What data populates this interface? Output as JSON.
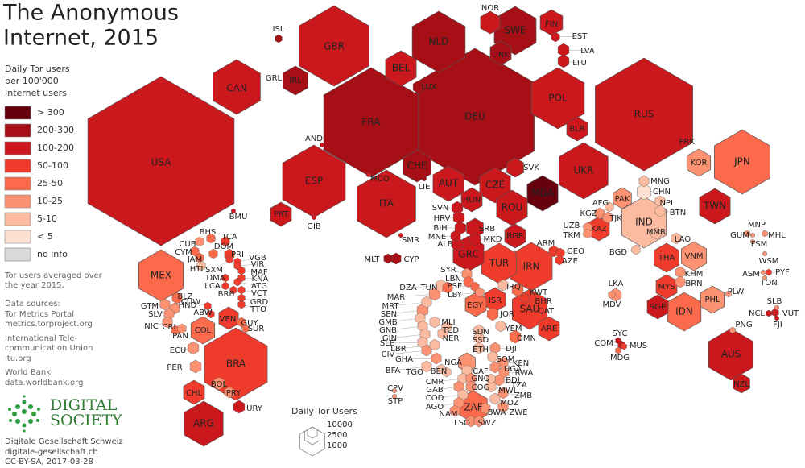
{
  "title": [
    "The Anonymous",
    "Internet, 2015"
  ],
  "legend": {
    "title": [
      "Daily Tor users",
      "per 100'000",
      "Internet users"
    ],
    "bins": [
      {
        "label": "> 300",
        "color": "#67000d"
      },
      {
        "label": "200-300",
        "color": "#a50f15"
      },
      {
        "label": "100-200",
        "color": "#cb181d"
      },
      {
        "label": "50-100",
        "color": "#ef3b2c"
      },
      {
        "label": "25-50",
        "color": "#fb6a4a"
      },
      {
        "label": "10-25",
        "color": "#fc9272"
      },
      {
        "label": "5-10",
        "color": "#fcbba1"
      },
      {
        "label": "< 5",
        "color": "#fee0d2"
      },
      {
        "label": "no info",
        "color": "#d9d9d9"
      }
    ]
  },
  "notes": [
    "Tor users averaged over",
    "the year 2015."
  ],
  "sources": [
    "Data sources:",
    "Tor Metrics Portal",
    "metrics.torproject.org",
    "International Tele-",
    "communication Union",
    "itu.org",
    "World Bank",
    "data.worldbank.org"
  ],
  "logo": [
    "DIGITAL",
    "SOCIETY"
  ],
  "credits": [
    "Digitale Gesellschaft Schweiz",
    "digitale-gesellschaft.ch",
    "CC-BY-SA, 2017-03-28"
  ],
  "size_legend": {
    "title": "Daily Tor Users",
    "values": [
      10000,
      2500,
      1000
    ]
  },
  "countries": [
    {
      "code": "USA",
      "color": "#cb181d"
    },
    {
      "code": "CAN",
      "color": "#cb181d"
    },
    {
      "code": "BMU",
      "color": "#cb181d"
    },
    {
      "code": "GRL",
      "color": "#d9d9d9"
    },
    {
      "code": "ISL",
      "color": "#a50f15"
    },
    {
      "code": "IRL",
      "color": "#a50f15"
    },
    {
      "code": "GBR",
      "color": "#cb181d"
    },
    {
      "code": "NLD",
      "color": "#a50f15"
    },
    {
      "code": "BEL",
      "color": "#cb181d"
    },
    {
      "code": "LUX",
      "color": "#a50f15"
    },
    {
      "code": "FRA",
      "color": "#a50f15"
    },
    {
      "code": "DEU",
      "color": "#a50f15"
    },
    {
      "code": "NOR",
      "color": "#cb181d"
    },
    {
      "code": "SWE",
      "color": "#a50f15"
    },
    {
      "code": "DNK",
      "color": "#a50f15"
    },
    {
      "code": "FIN",
      "color": "#cb181d"
    },
    {
      "code": "EST",
      "color": "#cb181d"
    },
    {
      "code": "LVA",
      "color": "#cb181d"
    },
    {
      "code": "LTU",
      "color": "#cb181d"
    },
    {
      "code": "POL",
      "color": "#cb181d"
    },
    {
      "code": "BLR",
      "color": "#cb181d"
    },
    {
      "code": "RUS",
      "color": "#cb181d"
    },
    {
      "code": "PRK",
      "color": "#d9d9d9"
    },
    {
      "code": "UKR",
      "color": "#cb181d"
    },
    {
      "code": "AND",
      "color": "#cb181d"
    },
    {
      "code": "ESP",
      "color": "#cb181d"
    },
    {
      "code": "PRT",
      "color": "#cb181d"
    },
    {
      "code": "GIB",
      "color": "#cb181d"
    },
    {
      "code": "MCO",
      "color": "#cb181d"
    },
    {
      "code": "CHE",
      "color": "#a50f15"
    },
    {
      "code": "LIE",
      "color": "#a50f15"
    },
    {
      "code": "ITA",
      "color": "#cb181d"
    },
    {
      "code": "AUT",
      "color": "#cb181d"
    },
    {
      "code": "CZE",
      "color": "#cb181d"
    },
    {
      "code": "SVK",
      "color": "#cb181d"
    },
    {
      "code": "MDA",
      "color": "#67000d"
    },
    {
      "code": "HUN",
      "color": "#cb181d"
    },
    {
      "code": "ROU",
      "color": "#cb181d"
    },
    {
      "code": "SVN",
      "color": "#cb181d"
    },
    {
      "code": "HRV",
      "color": "#cb181d"
    },
    {
      "code": "BIH",
      "color": "#cb181d"
    },
    {
      "code": "MNE",
      "color": "#cb181d"
    },
    {
      "code": "ALB",
      "color": "#cb181d"
    },
    {
      "code": "SRB",
      "color": "#cb181d"
    },
    {
      "code": "MKD",
      "color": "#cb181d"
    },
    {
      "code": "BGR",
      "color": "#cb181d"
    },
    {
      "code": "SMR",
      "color": "#cb181d"
    },
    {
      "code": "MLT",
      "color": "#a50f15"
    },
    {
      "code": "CYP",
      "color": "#a50f15"
    },
    {
      "code": "GRC",
      "color": "#cb181d"
    },
    {
      "code": "TUR",
      "color": "#ef3b2c"
    },
    {
      "code": "IRN",
      "color": "#ef3b2c"
    },
    {
      "code": "ARM",
      "color": "#ef3b2c"
    },
    {
      "code": "GEO",
      "color": "#ef3b2c"
    },
    {
      "code": "AZE",
      "color": "#ef3b2c"
    },
    {
      "code": "SYR",
      "color": "#fc9272"
    },
    {
      "code": "LBN",
      "color": "#fb6a4a"
    },
    {
      "code": "PSE",
      "color": "#fb6a4a"
    },
    {
      "code": "LBY",
      "color": "#fc9272"
    },
    {
      "code": "ISR",
      "color": "#ef3b2c"
    },
    {
      "code": "EGY",
      "color": "#fb6a4a"
    },
    {
      "code": "IRQ",
      "color": "#fcbba1"
    },
    {
      "code": "JOR",
      "color": "#fb6a4a"
    },
    {
      "code": "KWT",
      "color": "#fb6a4a"
    },
    {
      "code": "BHR",
      "color": "#ef3b2c"
    },
    {
      "code": "QAT",
      "color": "#ef3b2c"
    },
    {
      "code": "SAU",
      "color": "#ef3b2c"
    },
    {
      "code": "ARE",
      "color": "#ef3b2c"
    },
    {
      "code": "YEM",
      "color": "#fcbba1"
    },
    {
      "code": "OMN",
      "color": "#fb6a4a"
    },
    {
      "code": "MAR",
      "color": "#fc9272"
    },
    {
      "code": "DZA",
      "color": "#fcbba1"
    },
    {
      "code": "TUN",
      "color": "#fb6a4a"
    },
    {
      "code": "MRT",
      "color": "#fcbba1"
    },
    {
      "code": "SEN",
      "color": "#fc9272"
    },
    {
      "code": "GMB",
      "color": "#fcbba1"
    },
    {
      "code": "GNB",
      "color": "#fcbba1"
    },
    {
      "code": "MLI",
      "color": "#fcbba1"
    },
    {
      "code": "NER",
      "color": "#fcbba1"
    },
    {
      "code": "TCD",
      "color": "#fcbba1"
    },
    {
      "code": "GIN",
      "color": "#fcbba1"
    },
    {
      "code": "SLE",
      "color": "#fcbba1"
    },
    {
      "code": "CIV",
      "color": "#fc9272"
    },
    {
      "code": "LBR",
      "color": "#fcbba1"
    },
    {
      "code": "GHA",
      "color": "#fc9272"
    },
    {
      "code": "BFA",
      "color": "#fcbba1"
    },
    {
      "code": "TGO",
      "color": "#fcbba1"
    },
    {
      "code": "BEN",
      "color": "#fcbba1"
    },
    {
      "code": "NGA",
      "color": "#fc9272"
    },
    {
      "code": "CAF",
      "color": "#fcbba1"
    },
    {
      "code": "CMR",
      "color": "#fcbba1"
    },
    {
      "code": "GAB",
      "color": "#fc9272"
    },
    {
      "code": "GNQ",
      "color": "#fc9272"
    },
    {
      "code": "COG",
      "color": "#fc9272"
    },
    {
      "code": "COD",
      "color": "#fcbba1"
    },
    {
      "code": "AGO",
      "color": "#fc9272"
    },
    {
      "code": "CPV",
      "color": "#fc9272"
    },
    {
      "code": "STP",
      "color": "#fc9272"
    },
    {
      "code": "SDN",
      "color": "#fcbba1"
    },
    {
      "code": "SSD",
      "color": "#fcbba1"
    },
    {
      "code": "ETH",
      "color": "#fcbba1"
    },
    {
      "code": "DJI",
      "color": "#fc9272"
    },
    {
      "code": "SOM",
      "color": "#fcbba1"
    },
    {
      "code": "KEN",
      "color": "#fc9272"
    },
    {
      "code": "UGA",
      "color": "#fc9272"
    },
    {
      "code": "RWA",
      "color": "#fc9272"
    },
    {
      "code": "TZA",
      "color": "#fc9272"
    },
    {
      "code": "BDI",
      "color": "#fcbba1"
    },
    {
      "code": "MWI",
      "color": "#fcbba1"
    },
    {
      "code": "ZMB",
      "color": "#fc9272"
    },
    {
      "code": "MOZ",
      "color": "#fcbba1"
    },
    {
      "code": "ZWE",
      "color": "#fc9272"
    },
    {
      "code": "BWA",
      "color": "#fc9272"
    },
    {
      "code": "ZAF",
      "color": "#fb6a4a"
    },
    {
      "code": "NAM",
      "color": "#fc9272"
    },
    {
      "code": "LSO",
      "color": "#fc9272"
    },
    {
      "code": "SWZ",
      "color": "#fc9272"
    },
    {
      "code": "MNG",
      "color": "#fcbba1"
    },
    {
      "code": "CHN",
      "color": "#fee0d2"
    },
    {
      "code": "KOR",
      "color": "#fc9272"
    },
    {
      "code": "JPN",
      "color": "#fb6a4a"
    },
    {
      "code": "TWN",
      "color": "#cb181d"
    },
    {
      "code": "AFG",
      "color": "#fcbba1"
    },
    {
      "code": "PAK",
      "color": "#fc9272"
    },
    {
      "code": "KGZ",
      "color": "#fc9272"
    },
    {
      "code": "TJK",
      "color": "#fc9272"
    },
    {
      "code": "UZB",
      "color": "#fc9272"
    },
    {
      "code": "TKM",
      "color": "#fc9272"
    },
    {
      "code": "KAZ",
      "color": "#ef3b2c"
    },
    {
      "code": "NPL",
      "color": "#fcbba1"
    },
    {
      "code": "BTN",
      "color": "#fcbba1"
    },
    {
      "code": "IND",
      "color": "#fcbba1"
    },
    {
      "code": "BGD",
      "color": "#fcbba1"
    },
    {
      "code": "MMR",
      "color": "#fcbba1"
    },
    {
      "code": "LAO",
      "color": "#fcbba1"
    },
    {
      "code": "THA",
      "color": "#ef3b2c"
    },
    {
      "code": "VNM",
      "color": "#fc9272"
    },
    {
      "code": "KHM",
      "color": "#fc9272"
    },
    {
      "code": "BRN",
      "color": "#fc9272"
    },
    {
      "code": "MYS",
      "color": "#ef3b2c"
    },
    {
      "code": "SGP",
      "color": "#cb181d"
    },
    {
      "code": "IDN",
      "color": "#fb6a4a"
    },
    {
      "code": "PHL",
      "color": "#fc9272"
    },
    {
      "code": "PLW",
      "color": "#fc9272"
    },
    {
      "code": "LKA",
      "color": "#fc9272"
    },
    {
      "code": "MDV",
      "color": "#fc9272"
    },
    {
      "code": "SYC",
      "color": "#cb181d"
    },
    {
      "code": "COM",
      "color": "#ef3b2c"
    },
    {
      "code": "MUS",
      "color": "#cb181d"
    },
    {
      "code": "MDG",
      "color": "#fb6a4a"
    },
    {
      "code": "MNP",
      "color": "#fc9272"
    },
    {
      "code": "GUM",
      "color": "#fc9272"
    },
    {
      "code": "MHL",
      "color": "#fc9272"
    },
    {
      "code": "FSM",
      "color": "#fc9272"
    },
    {
      "code": "WSM",
      "color": "#fc9272"
    },
    {
      "code": "ASM",
      "color": "#fc9272"
    },
    {
      "code": "PYF",
      "color": "#ef3b2c"
    },
    {
      "code": "TON",
      "color": "#fc9272"
    },
    {
      "code": "SLB",
      "color": "#fc9272"
    },
    {
      "code": "NCL",
      "color": "#cb181d"
    },
    {
      "code": "VUT",
      "color": "#cb181d"
    },
    {
      "code": "FJI",
      "color": "#cb181d"
    },
    {
      "code": "PNG",
      "color": "#fc9272"
    },
    {
      "code": "AUS",
      "color": "#cb181d"
    },
    {
      "code": "NZL",
      "color": "#cb181d"
    },
    {
      "code": "MEX",
      "color": "#fb6a4a"
    },
    {
      "code": "GTM",
      "color": "#fc9272"
    },
    {
      "code": "BLZ",
      "color": "#fb6a4a"
    },
    {
      "code": "HND",
      "color": "#fc9272"
    },
    {
      "code": "SLV",
      "color": "#fc9272"
    },
    {
      "code": "NIC",
      "color": "#fc9272"
    },
    {
      "code": "CRI",
      "color": "#fb6a4a"
    },
    {
      "code": "PAN",
      "color": "#fc9272"
    },
    {
      "code": "CUB",
      "color": "#fc9272"
    },
    {
      "code": "CYM",
      "color": "#fb6a4a"
    },
    {
      "code": "BHS",
      "color": "#fb6a4a"
    },
    {
      "code": "TCA",
      "color": "#ef3b2c"
    },
    {
      "code": "DOM",
      "color": "#fb6a4a"
    },
    {
      "code": "JAM",
      "color": "#fb6a4a"
    },
    {
      "code": "HTI",
      "color": "#fcbba1"
    },
    {
      "code": "SXM",
      "color": "#ef3b2c"
    },
    {
      "code": "PRI",
      "color": "#ef3b2c"
    },
    {
      "code": "VGB",
      "color": "#ef3b2c"
    },
    {
      "code": "VIR",
      "color": "#ef3b2c"
    },
    {
      "code": "MAF",
      "color": "#ef3b2c"
    },
    {
      "code": "KNA",
      "color": "#ef3b2c"
    },
    {
      "code": "ATG",
      "color": "#ef3b2c"
    },
    {
      "code": "DMA",
      "color": "#ef3b2c"
    },
    {
      "code": "LCA",
      "color": "#ef3b2c"
    },
    {
      "code": "BRB",
      "color": "#ef3b2c"
    },
    {
      "code": "VCT",
      "color": "#ef3b2c"
    },
    {
      "code": "GRD",
      "color": "#ef3b2c"
    },
    {
      "code": "TTO",
      "color": "#ef3b2c"
    },
    {
      "code": "CUW",
      "color": "#ef3b2c"
    },
    {
      "code": "ABW",
      "color": "#ef3b2c"
    },
    {
      "code": "VEN",
      "color": "#ef3b2c"
    },
    {
      "code": "GUY",
      "color": "#fb6a4a"
    },
    {
      "code": "SUR",
      "color": "#fb6a4a"
    },
    {
      "code": "COL",
      "color": "#fb6a4a"
    },
    {
      "code": "ECU",
      "color": "#fc9272"
    },
    {
      "code": "PER",
      "color": "#fc9272"
    },
    {
      "code": "BRA",
      "color": "#ef3b2c"
    },
    {
      "code": "BOL",
      "color": "#fc9272"
    },
    {
      "code": "PRY",
      "color": "#fc9272"
    },
    {
      "code": "CHL",
      "color": "#ef3b2c"
    },
    {
      "code": "ARG",
      "color": "#cb181d"
    },
    {
      "code": "URY",
      "color": "#cb181d"
    }
  ]
}
